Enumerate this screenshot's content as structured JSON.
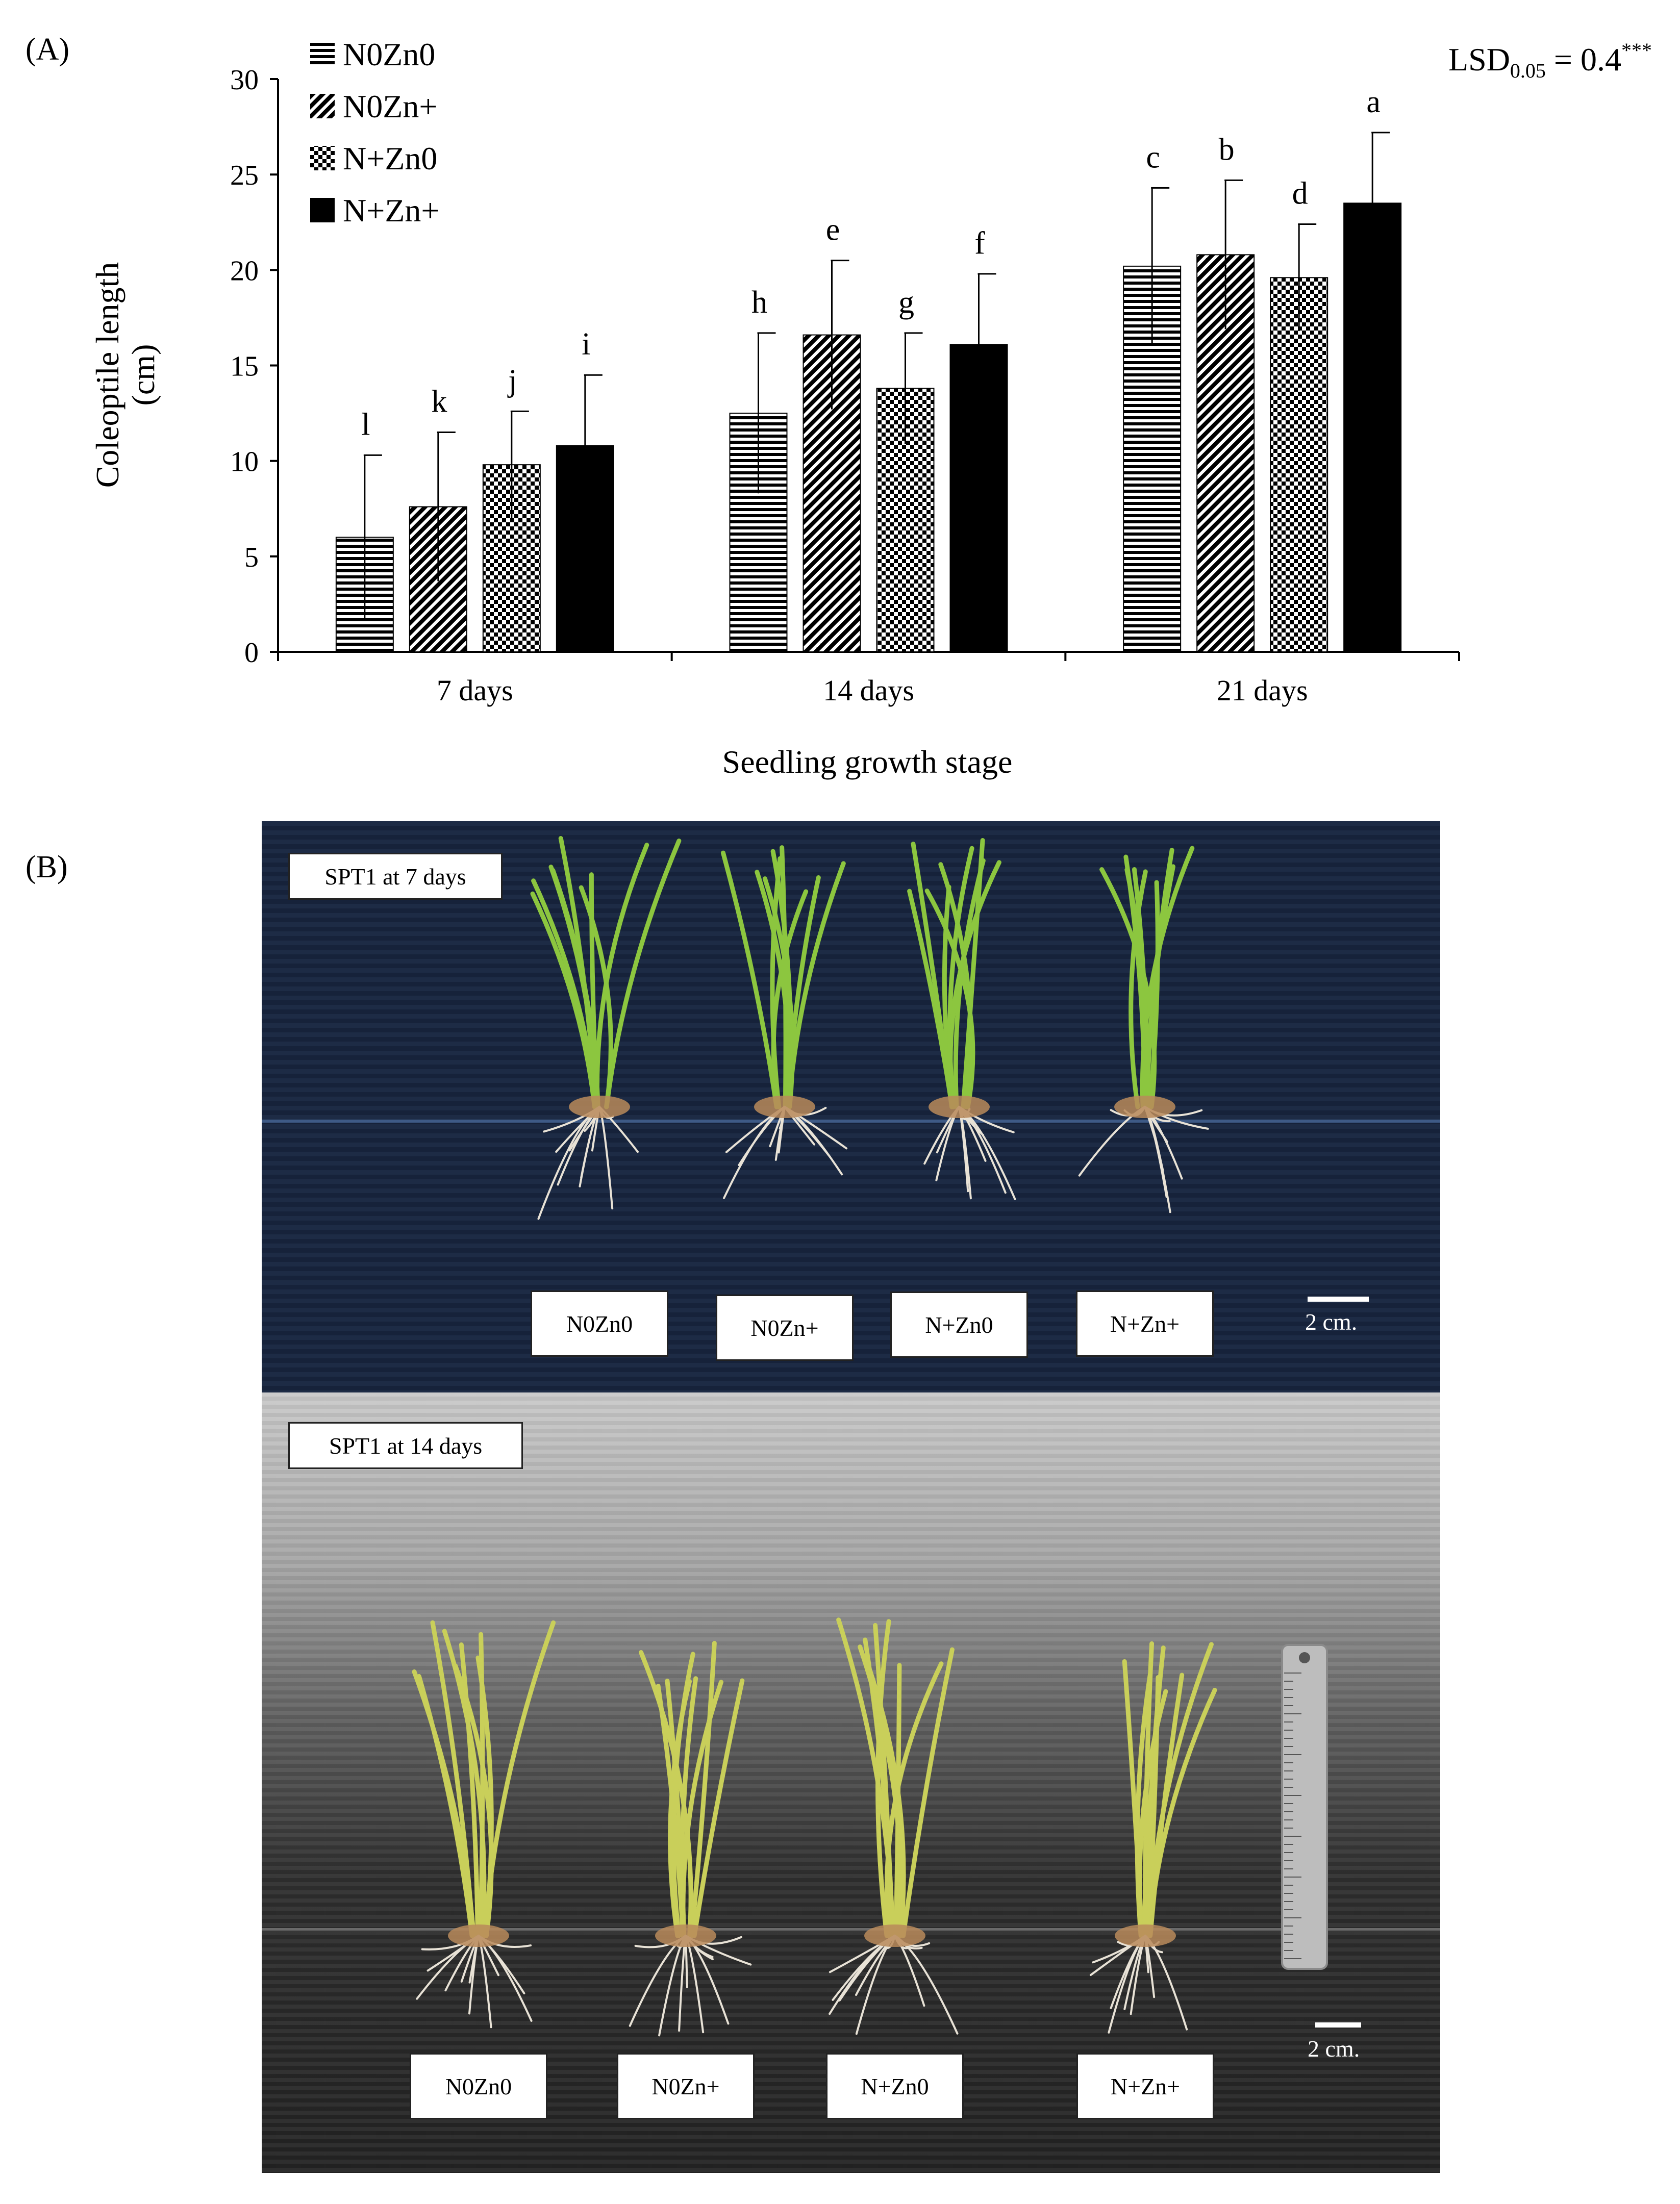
{
  "panel_a_label": "(A)",
  "panel_b_label": "(B)",
  "chart_data": {
    "type": "bar",
    "title": "",
    "xlabel": "Seedling growth stage",
    "ylabel_line1": "Coleoptile length",
    "ylabel_line2": "(cm)",
    "ylim": [
      0,
      30
    ],
    "yticks": [
      "0",
      "5",
      "10",
      "15",
      "20",
      "25",
      "30"
    ],
    "categories": [
      "7 days",
      "14 days",
      "21 days"
    ],
    "legend_position": "top-left",
    "lsd": {
      "text": "LSD",
      "sub": "0.05",
      "value": " = 0.4",
      "sup": "***"
    },
    "series": [
      {
        "name": "N0Zn0",
        "pattern": "horizontal-lines",
        "values": [
          6.0,
          12.5,
          20.2
        ],
        "errors": [
          4.3,
          4.2,
          4.1
        ],
        "letters": [
          "l",
          "h",
          "c"
        ]
      },
      {
        "name": "N0Zn+",
        "pattern": "diagonal-lines",
        "values": [
          7.6,
          16.6,
          20.8
        ],
        "errors": [
          3.9,
          3.9,
          3.9
        ],
        "letters": [
          "k",
          "e",
          "b"
        ]
      },
      {
        "name": "N+Zn0",
        "pattern": "checkerboard",
        "values": [
          9.8,
          13.8,
          19.6
        ],
        "errors": [
          2.8,
          2.9,
          2.8
        ],
        "letters": [
          "j",
          "g",
          "d"
        ]
      },
      {
        "name": "N+Zn+",
        "pattern": "solid",
        "values": [
          10.8,
          16.1,
          23.5
        ],
        "errors": [
          3.7,
          3.7,
          3.7
        ],
        "letters": [
          "i",
          "f",
          "a"
        ]
      }
    ]
  },
  "photo": {
    "top_title": "SPT1 at 7 days",
    "bottom_title": "SPT1 at 14 days",
    "top_labels": [
      "N0Zn0",
      "N0Zn+",
      "N+Zn0",
      "N+Zn+"
    ],
    "bottom_labels": [
      "N0Zn0",
      "N0Zn+",
      "N+Zn0",
      "N+Zn+"
    ],
    "scale_top": "2 cm.",
    "scale_bottom": "2 cm.",
    "colors": {
      "board_top": "#1d2b45",
      "leaf_top": "#8cc63f",
      "leaf_bottom": "#c9cf5a",
      "root": "#e8e2d6"
    }
  }
}
